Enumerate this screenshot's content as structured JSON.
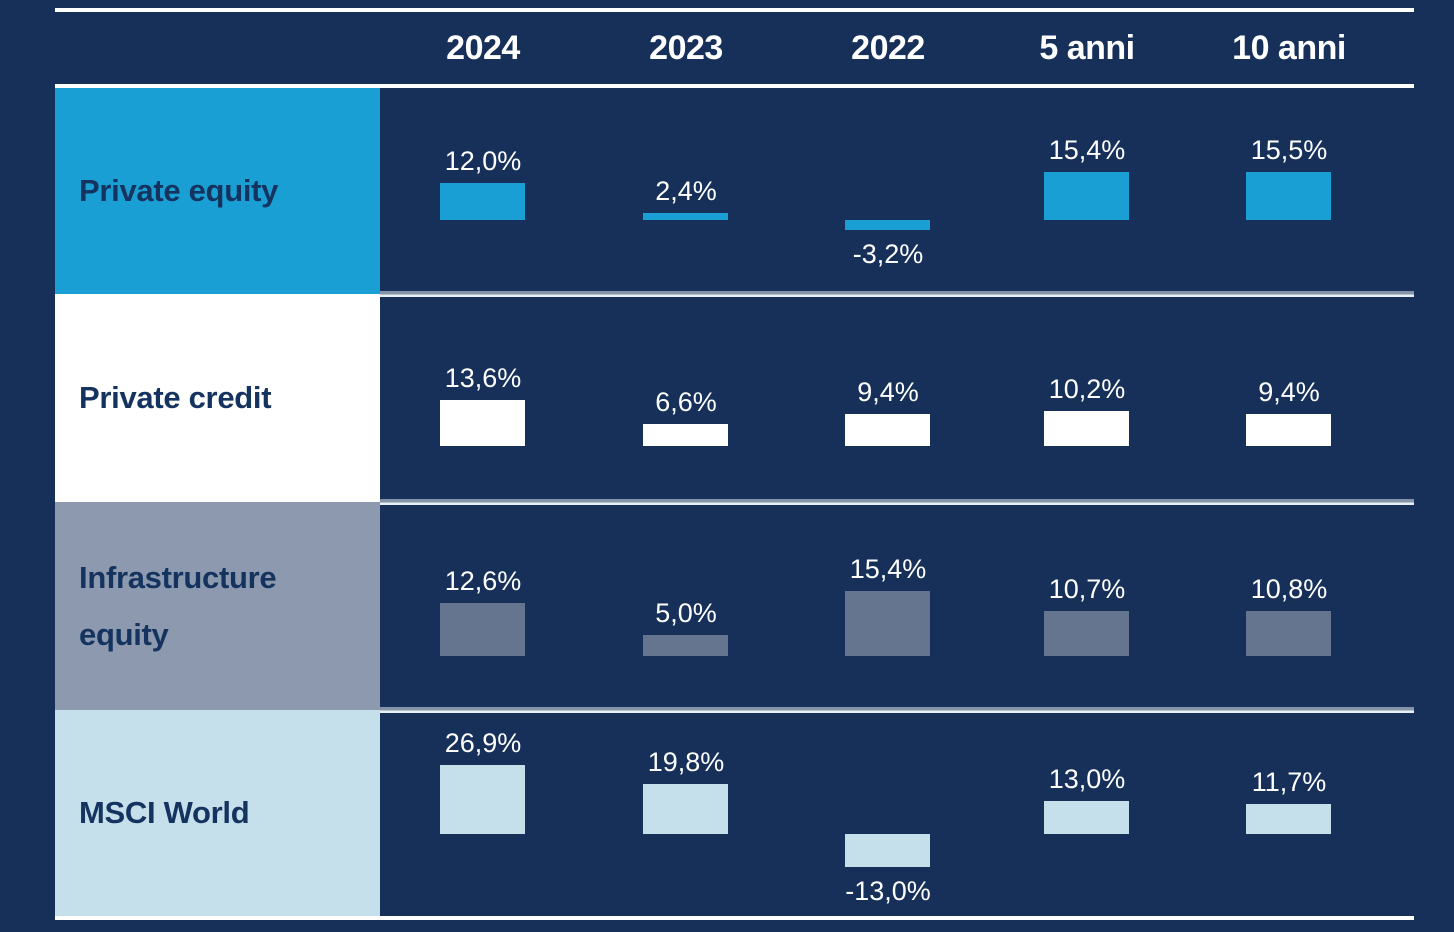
{
  "chart_data": {
    "type": "bar",
    "unit": "%",
    "decimal_style": "comma",
    "title": "",
    "legend": "none",
    "baseline": 0,
    "grid": "horizontal row separators between asset rows",
    "columns": [
      "2024",
      "2023",
      "2022",
      "5 anni",
      "10 anni"
    ],
    "rows": [
      {
        "name": "Private equity",
        "values": [
          12.0,
          2.4,
          -3.2,
          15.4,
          15.5
        ],
        "value_labels": [
          "12,0%",
          "2,4%",
          "-3,2%",
          "15,4%",
          "15,5%"
        ],
        "bar_color": "#1a9fd4",
        "row_header_bg": "#1a9fd4",
        "row_header_text": "#14335f"
      },
      {
        "name": "Private credit",
        "values": [
          13.6,
          6.6,
          9.4,
          10.2,
          9.4
        ],
        "value_labels": [
          "13,6%",
          "6,6%",
          "9,4%",
          "10,2%",
          "9,4%"
        ],
        "bar_color": "#ffffff",
        "row_header_bg": "#ffffff",
        "row_header_text": "#14335f"
      },
      {
        "name": "Infrastructure equity",
        "values": [
          12.6,
          5.0,
          15.4,
          10.7,
          10.8
        ],
        "value_labels": [
          "12,6%",
          "5,0%",
          "15,4%",
          "10,7%",
          "10,8%"
        ],
        "bar_color": "#66758f",
        "row_header_bg": "#8c99ae",
        "row_header_text": "#14335f"
      },
      {
        "name": "MSCI World",
        "values": [
          26.9,
          19.8,
          -13.0,
          13.0,
          11.7
        ],
        "value_labels": [
          "26,9%",
          "19,8%",
          "-13,0%",
          "13,0%",
          "11,7%"
        ],
        "bar_color": "#c5dfeb",
        "row_header_bg": "#c5dfeb",
        "row_header_text": "#14335f"
      }
    ],
    "colors": {
      "background": "#16305a",
      "column_header_text": "#ffffff",
      "value_label_text": "#ffffff",
      "top_border": "#ffffff",
      "header_border": "#ffffff",
      "bottom_border": "#ffffff",
      "row_divider": "#8493a7"
    }
  }
}
